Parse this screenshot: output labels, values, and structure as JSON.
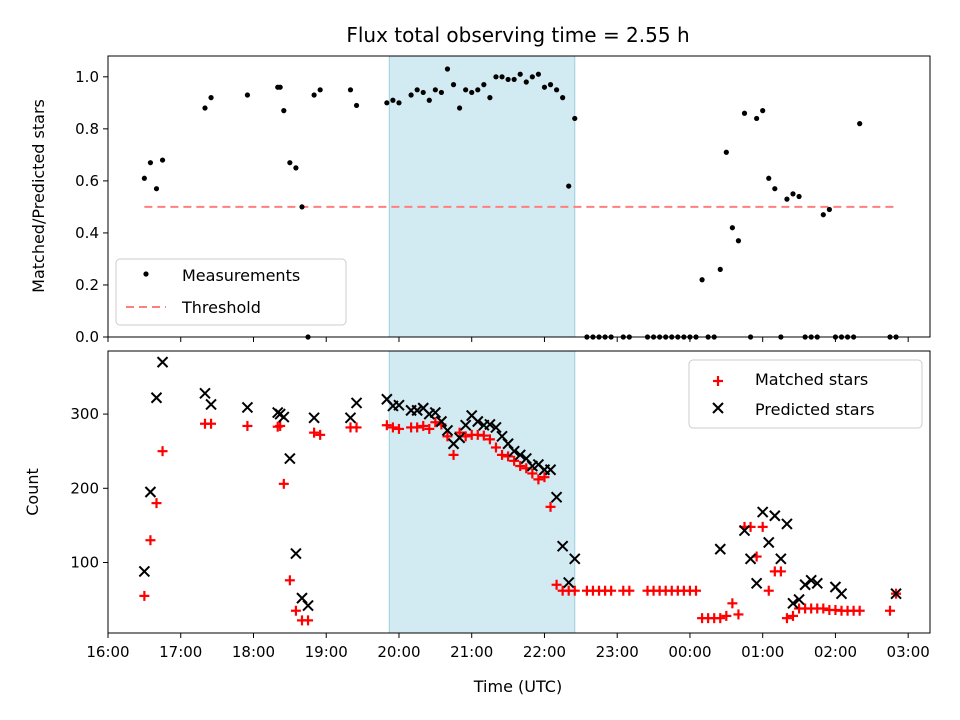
{
  "chart_data": [
    {
      "type": "scatter",
      "title": "Flux total observing time = 2.55 h",
      "xlabel": "",
      "ylabel": "Matched/Predicted stars",
      "xlim": [
        16.0,
        3.3
      ],
      "ylim": [
        0.0,
        1.08
      ],
      "yticks": [
        "0.0",
        "0.2",
        "0.4",
        "0.6",
        "0.8",
        "1.0"
      ],
      "shaded_span": {
        "start": "19:52",
        "end": "22:25",
        "color": "#add8e6"
      },
      "legend": {
        "placement": "lower-left",
        "entries": [
          "Measurements",
          "Threshold"
        ]
      },
      "series": [
        {
          "name": "Measurements",
          "marker": "dot",
          "color": "#000000",
          "x": [
            "16:30",
            "16:35",
            "16:40",
            "16:45",
            "17:20",
            "17:25",
            "17:55",
            "18:20",
            "18:22",
            "18:25",
            "18:30",
            "18:35",
            "18:40",
            "18:45",
            "18:50",
            "18:55",
            "19:20",
            "19:25",
            "19:50",
            "19:55",
            "20:00",
            "20:10",
            "20:15",
            "20:20",
            "20:25",
            "20:30",
            "20:35",
            "20:40",
            "20:45",
            "20:50",
            "20:55",
            "21:00",
            "21:05",
            "21:10",
            "21:15",
            "21:20",
            "21:25",
            "21:30",
            "21:35",
            "21:40",
            "21:45",
            "21:50",
            "21:55",
            "22:00",
            "22:05",
            "22:10",
            "22:15",
            "22:20",
            "22:25",
            "22:35",
            "22:40",
            "22:45",
            "22:50",
            "22:55",
            "23:05",
            "23:10",
            "23:25",
            "23:30",
            "23:35",
            "23:40",
            "23:45",
            "23:50",
            "23:55",
            "00:00",
            "00:05",
            "00:10",
            "00:15",
            "00:20",
            "00:25",
            "00:30",
            "00:35",
            "00:40",
            "00:45",
            "00:50",
            "00:55",
            "01:00",
            "01:05",
            "01:10",
            "01:15",
            "01:20",
            "01:25",
            "01:30",
            "01:35",
            "01:40",
            "01:45",
            "01:50",
            "01:55",
            "02:00",
            "02:05",
            "02:10",
            "02:15",
            "02:20",
            "02:45",
            "02:50"
          ],
          "y": [
            0.61,
            0.67,
            0.57,
            0.68,
            0.88,
            0.92,
            0.93,
            0.96,
            0.96,
            0.87,
            0.67,
            0.65,
            0.5,
            0.0,
            0.93,
            0.95,
            0.95,
            0.89,
            0.9,
            0.91,
            0.9,
            0.93,
            0.95,
            0.94,
            0.91,
            0.95,
            0.94,
            1.03,
            0.97,
            0.88,
            0.95,
            0.94,
            0.95,
            0.97,
            0.92,
            1.0,
            1.0,
            0.99,
            0.99,
            1.01,
            0.98,
            1.0,
            1.01,
            0.96,
            0.97,
            0.95,
            0.92,
            0.58,
            0.84,
            0.0,
            0.0,
            0.0,
            0.0,
            0.0,
            0.0,
            0.0,
            0.0,
            0.0,
            0.0,
            0.0,
            0.0,
            0.0,
            0.0,
            0.0,
            0.0,
            0.22,
            0.0,
            0.0,
            0.26,
            0.71,
            0.42,
            0.37,
            0.86,
            0.0,
            0.84,
            0.87,
            0.61,
            0.57,
            0.0,
            0.53,
            0.55,
            0.54,
            0.0,
            0.0,
            0.0,
            0.47,
            0.49,
            0.0,
            0.0,
            0.0,
            0.0,
            0.82,
            0.0,
            0.0
          ]
        },
        {
          "name": "Threshold",
          "marker": "dashed-line",
          "color": "#ff7f7f",
          "x": [
            "16:30",
            "02:50"
          ],
          "y": [
            0.5,
            0.5
          ]
        }
      ]
    },
    {
      "type": "scatter",
      "title": "",
      "xlabel": "Time (UTC)",
      "ylabel": "Count",
      "xlim": [
        16.0,
        3.3
      ],
      "ylim": [
        5,
        385
      ],
      "yticks": [
        "100",
        "200",
        "300"
      ],
      "xticks": [
        "16:00",
        "17:00",
        "18:00",
        "19:00",
        "20:00",
        "21:00",
        "22:00",
        "23:00",
        "00:00",
        "01:00",
        "02:00",
        "03:00"
      ],
      "shaded_span": {
        "start": "19:52",
        "end": "22:25",
        "color": "#add8e6"
      },
      "legend": {
        "placement": "top-right",
        "entries": [
          "Matched stars",
          "Predicted stars"
        ]
      },
      "series": [
        {
          "name": "Matched stars",
          "marker": "plus",
          "color": "#ff0000",
          "x": [
            "16:30",
            "16:35",
            "16:40",
            "16:45",
            "17:20",
            "17:25",
            "17:55",
            "18:20",
            "18:22",
            "18:25",
            "18:30",
            "18:35",
            "18:40",
            "18:45",
            "18:50",
            "18:55",
            "19:20",
            "19:25",
            "19:50",
            "19:55",
            "20:00",
            "20:10",
            "20:15",
            "20:20",
            "20:25",
            "20:30",
            "20:35",
            "20:40",
            "20:45",
            "20:50",
            "20:55",
            "21:00",
            "21:05",
            "21:10",
            "21:15",
            "21:20",
            "21:25",
            "21:30",
            "21:35",
            "21:40",
            "21:45",
            "21:50",
            "21:55",
            "22:00",
            "22:05",
            "22:10",
            "22:15",
            "22:20",
            "22:25",
            "22:35",
            "22:40",
            "22:45",
            "22:50",
            "22:55",
            "23:05",
            "23:10",
            "23:25",
            "23:30",
            "23:35",
            "23:40",
            "23:45",
            "23:50",
            "23:55",
            "00:00",
            "00:05",
            "00:10",
            "00:15",
            "00:20",
            "00:25",
            "00:30",
            "00:35",
            "00:40",
            "00:45",
            "00:50",
            "00:55",
            "01:00",
            "01:05",
            "01:10",
            "01:15",
            "01:20",
            "01:25",
            "01:30",
            "01:35",
            "01:40",
            "01:45",
            "01:50",
            "01:55",
            "02:00",
            "02:05",
            "02:10",
            "02:15",
            "02:20",
            "02:45",
            "02:50"
          ],
          "y": [
            55,
            130,
            180,
            250,
            287,
            287,
            284,
            283,
            284,
            206,
            76,
            35,
            22,
            22,
            275,
            272,
            282,
            282,
            285,
            282,
            280,
            282,
            282,
            284,
            280,
            289,
            286,
            270,
            245,
            275,
            270,
            272,
            272,
            271,
            266,
            255,
            245,
            243,
            237,
            230,
            227,
            220,
            212,
            215,
            175,
            70,
            62,
            62,
            62,
            62,
            62,
            62,
            62,
            62,
            62,
            62,
            62,
            62,
            62,
            62,
            62,
            62,
            62,
            62,
            62,
            25,
            25,
            25,
            25,
            28,
            45,
            30,
            148,
            148,
            108,
            148,
            62,
            88,
            88,
            25,
            28,
            38,
            38,
            38,
            38,
            38,
            36,
            36,
            35,
            35,
            35,
            35,
            35,
            58
          ]
        },
        {
          "name": "Predicted stars",
          "marker": "x",
          "color": "#000000",
          "x": [
            "16:30",
            "16:35",
            "16:40",
            "16:45",
            "17:20",
            "17:25",
            "17:55",
            "18:20",
            "18:22",
            "18:25",
            "18:30",
            "18:35",
            "18:40",
            "18:45",
            "18:50",
            "19:20",
            "19:25",
            "19:50",
            "19:55",
            "20:00",
            "20:10",
            "20:15",
            "20:20",
            "20:25",
            "20:30",
            "20:35",
            "20:40",
            "20:45",
            "20:50",
            "20:55",
            "21:00",
            "21:05",
            "21:10",
            "21:15",
            "21:20",
            "21:25",
            "21:30",
            "21:35",
            "21:40",
            "21:45",
            "21:50",
            "21:55",
            "22:00",
            "22:05",
            "22:10",
            "22:15",
            "22:20",
            "22:25",
            "00:25",
            "00:45",
            "00:50",
            "00:55",
            "01:00",
            "01:05",
            "01:10",
            "01:15",
            "01:20",
            "01:25",
            "01:30",
            "01:35",
            "01:40",
            "01:45",
            "02:00",
            "02:05",
            "02:50"
          ],
          "y": [
            88,
            195,
            322,
            370,
            328,
            313,
            309,
            302,
            300,
            296,
            240,
            112,
            52,
            42,
            295,
            295,
            315,
            320,
            311,
            312,
            305,
            305,
            308,
            300,
            302,
            290,
            278,
            260,
            268,
            285,
            298,
            290,
            285,
            286,
            282,
            270,
            260,
            250,
            245,
            240,
            230,
            232,
            225,
            225,
            188,
            122,
            73,
            105,
            118,
            143,
            105,
            72,
            168,
            127,
            163,
            105,
            152,
            45,
            50,
            70,
            76,
            72,
            67,
            58,
            58
          ]
        }
      ]
    }
  ]
}
